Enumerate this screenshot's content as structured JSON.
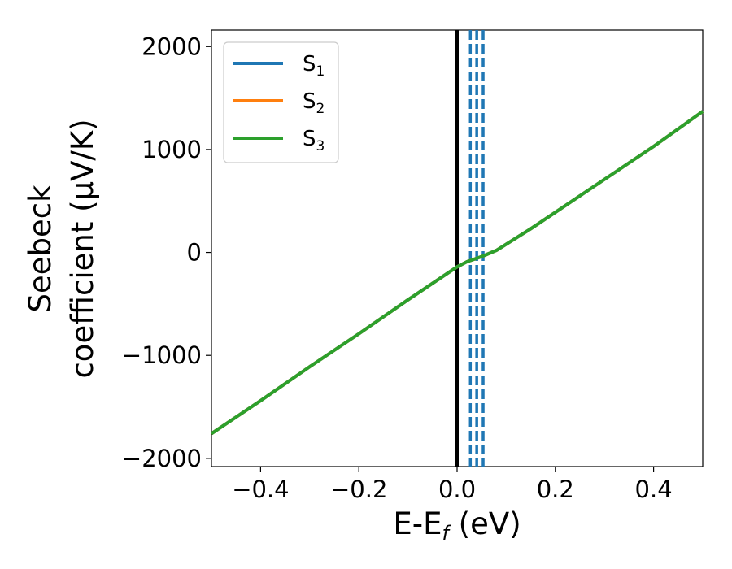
{
  "chart_data": {
    "type": "line",
    "xlabel": "E-E",
    "xlabel_sub": "f",
    "xlabel_unit": " (eV)",
    "ylabel_line1": "Seebeck",
    "ylabel_line2": "coefficient  (μV/K)",
    "xlim": [
      -0.5,
      0.5
    ],
    "ylim": [
      -2080,
      2160
    ],
    "xticks": [
      -0.4,
      -0.2,
      0.0,
      0.2,
      0.4
    ],
    "xtick_labels": [
      "−0.4",
      "−0.2",
      "0.0",
      "0.2",
      "0.4"
    ],
    "yticks": [
      -2000,
      -1000,
      0,
      1000,
      2000
    ],
    "ytick_labels": [
      "−2000",
      "−1000",
      "0",
      "1000",
      "2000"
    ],
    "grid": false,
    "legend_placement": "top-left",
    "series": [
      {
        "name": "S",
        "name_sub": "1",
        "color": "#1f77b4",
        "x": [
          -0.5,
          -0.4,
          -0.3,
          -0.2,
          -0.1,
          -0.05,
          0.0,
          0.02,
          0.05,
          0.08,
          0.1,
          0.12,
          0.15,
          0.2,
          0.3,
          0.4,
          0.45,
          0.5
        ],
        "y": [
          -1760,
          -1440,
          -1110,
          -790,
          -460,
          -300,
          -140,
          -90,
          -40,
          20,
          80,
          140,
          230,
          390,
          710,
          1030,
          1200,
          1370
        ]
      },
      {
        "name": "S",
        "name_sub": "2",
        "color": "#ff7f0e",
        "x": [
          -0.5,
          -0.4,
          -0.3,
          -0.2,
          -0.1,
          -0.05,
          0.0,
          0.02,
          0.05,
          0.08,
          0.1,
          0.12,
          0.15,
          0.2,
          0.3,
          0.4,
          0.45,
          0.5
        ],
        "y": [
          -1760,
          -1440,
          -1110,
          -790,
          -460,
          -300,
          -140,
          -90,
          -40,
          20,
          80,
          140,
          230,
          390,
          710,
          1030,
          1200,
          1370
        ]
      },
      {
        "name": "S",
        "name_sub": "3",
        "color": "#2ca02c",
        "x": [
          -0.5,
          -0.4,
          -0.3,
          -0.2,
          -0.1,
          -0.05,
          0.0,
          0.02,
          0.05,
          0.08,
          0.1,
          0.12,
          0.15,
          0.2,
          0.3,
          0.4,
          0.45,
          0.5
        ],
        "y": [
          -1760,
          -1440,
          -1110,
          -790,
          -460,
          -300,
          -140,
          -90,
          -40,
          20,
          80,
          140,
          230,
          390,
          710,
          1030,
          1200,
          1370
        ]
      }
    ],
    "vertical_lines": [
      {
        "x": 0.0,
        "style": "solid",
        "color": "#000000"
      },
      {
        "x": 0.027,
        "style": "dashed",
        "color": "#1f77b4"
      },
      {
        "x": 0.04,
        "style": "dashed",
        "color": "#1f77b4"
      },
      {
        "x": 0.053,
        "style": "dashed",
        "color": "#1f77b4"
      }
    ]
  }
}
